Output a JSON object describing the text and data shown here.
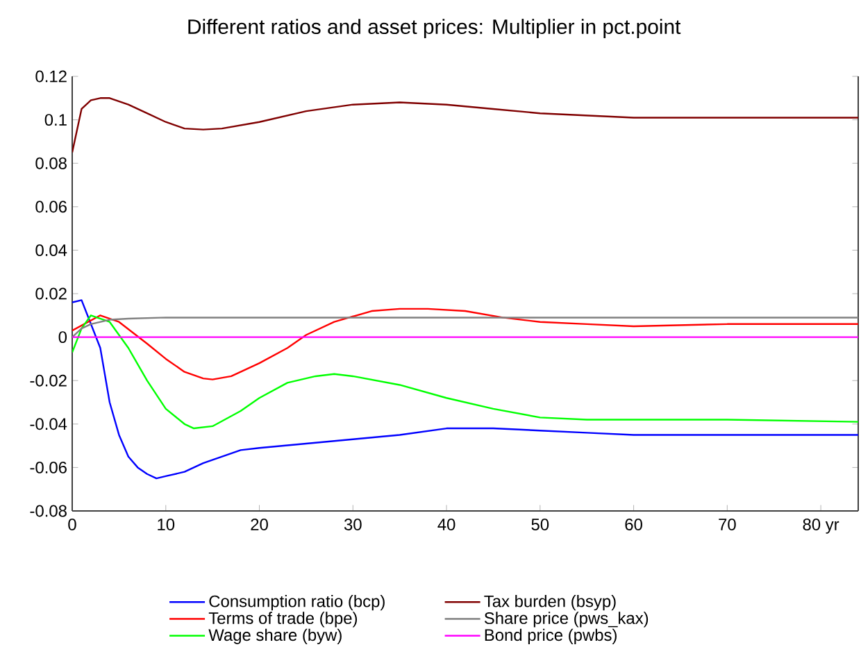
{
  "chart_data": {
    "type": "line",
    "title": "Different ratios and asset prices: Multiplier in pct.point",
    "xlim": [
      0,
      84
    ],
    "ylim": [
      -0.08,
      0.12
    ],
    "xticks": [
      0,
      10,
      20,
      30,
      40,
      50,
      60,
      70,
      {
        "value": 80,
        "label": "80 yr"
      }
    ],
    "yticks": [
      -0.08,
      -0.06,
      -0.04,
      -0.02,
      0,
      0.02,
      0.04,
      0.06,
      0.08,
      0.1,
      0.12
    ],
    "legend": "bottom",
    "grid": false,
    "marker": "none",
    "line_style": "solid",
    "series": [
      {
        "name": "Consumption ratio (bcp)",
        "color": "#0000ff",
        "x": [
          0,
          1,
          3,
          4,
          5,
          6,
          7,
          8,
          9,
          10,
          12,
          14,
          16,
          18,
          20,
          25,
          30,
          35,
          40,
          45,
          50,
          55,
          60,
          70,
          84
        ],
        "values": [
          0.016,
          0.017,
          -0.005,
          -0.03,
          -0.045,
          -0.055,
          -0.06,
          -0.063,
          -0.065,
          -0.064,
          -0.062,
          -0.058,
          -0.055,
          -0.052,
          -0.051,
          -0.049,
          -0.047,
          -0.045,
          -0.042,
          -0.042,
          -0.043,
          -0.044,
          -0.045,
          -0.045,
          -0.045
        ]
      },
      {
        "name": "Terms of trade (bpe)",
        "color": "#ff0000",
        "x": [
          0,
          3,
          5,
          8,
          10,
          12,
          14,
          15,
          17,
          20,
          23,
          25,
          28,
          32,
          35,
          38,
          42,
          46,
          50,
          55,
          60,
          70,
          84
        ],
        "values": [
          0.003,
          0.01,
          0.007,
          -0.003,
          -0.01,
          -0.016,
          -0.019,
          -0.0195,
          -0.018,
          -0.012,
          -0.005,
          0.001,
          0.007,
          0.012,
          0.013,
          0.013,
          0.012,
          0.009,
          0.007,
          0.006,
          0.005,
          0.006,
          0.006
        ]
      },
      {
        "name": "Wage share (byw)",
        "color": "#00ff00",
        "x": [
          0,
          1,
          2,
          4,
          6,
          8,
          10,
          12,
          13,
          15,
          18,
          20,
          23,
          26,
          28,
          30,
          35,
          40,
          45,
          50,
          55,
          60,
          70,
          84
        ],
        "values": [
          -0.007,
          0.004,
          0.01,
          0.007,
          -0.005,
          -0.02,
          -0.033,
          -0.04,
          -0.042,
          -0.041,
          -0.034,
          -0.028,
          -0.021,
          -0.018,
          -0.017,
          -0.018,
          -0.022,
          -0.028,
          -0.033,
          -0.037,
          -0.038,
          -0.038,
          -0.038,
          -0.039
        ]
      },
      {
        "name": "Tax burden (bsyp)",
        "color": "#800000",
        "x": [
          0,
          1,
          2,
          3,
          4,
          6,
          8,
          10,
          12,
          14,
          16,
          20,
          25,
          30,
          35,
          40,
          45,
          50,
          55,
          60,
          84
        ],
        "values": [
          0.085,
          0.105,
          0.109,
          0.11,
          0.11,
          0.107,
          0.103,
          0.099,
          0.096,
          0.0955,
          0.096,
          0.099,
          0.104,
          0.107,
          0.108,
          0.107,
          0.105,
          0.103,
          0.102,
          0.101,
          0.101
        ]
      },
      {
        "name": "Share price (pws_kax)",
        "color": "#808080",
        "x": [
          0,
          1,
          2,
          4,
          6,
          10,
          84
        ],
        "values": [
          0.0,
          0.004,
          0.006,
          0.008,
          0.0085,
          0.009,
          0.009
        ]
      },
      {
        "name": "Bond price (pwbs)",
        "color": "#ff00ff",
        "x": [
          0,
          84
        ],
        "values": [
          0,
          0
        ]
      }
    ]
  }
}
